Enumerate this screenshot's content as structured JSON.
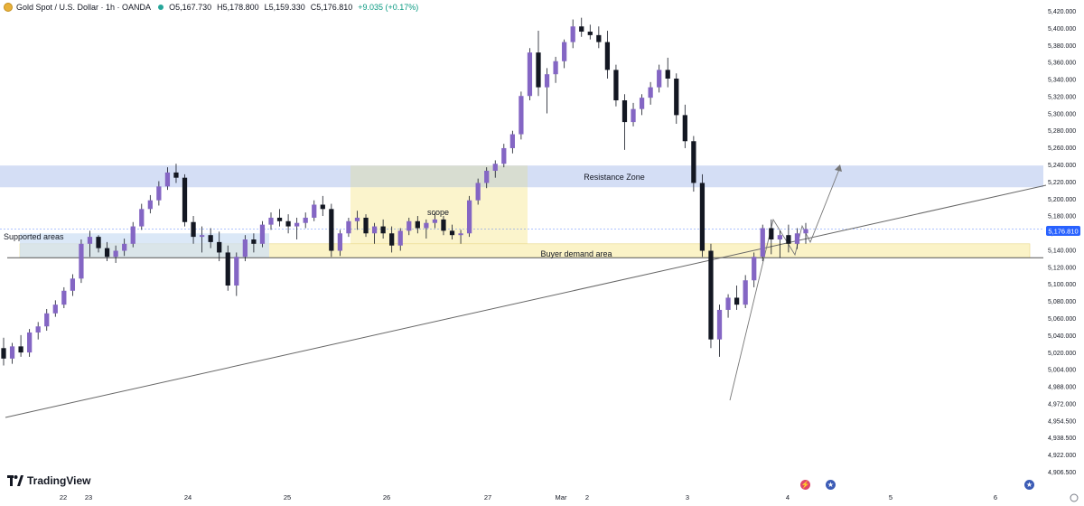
{
  "header": {
    "symbol": "Gold Spot / U.S. Dollar · 1h · OANDA",
    "open": "O5,167.730",
    "high": "H5,178.800",
    "low": "L5,159.330",
    "close": "C5,176.810",
    "change": "+9.035 (+0.17%)"
  },
  "brand": "TradingView",
  "icons": {
    "symbol": "gold-coin-icon",
    "brand": "tradingview-logo-icon",
    "event1": "lightning-event-icon",
    "event2": "us-flag-icon",
    "event3": "us-flag-icon"
  },
  "colors": {
    "bull_body": "#8466c4",
    "bear_body": "#131722",
    "wick": "#131722",
    "resistance_zone": "#c9d6f2",
    "demand_zone": "#fbf3c7",
    "support_zone": "#cfe0f4",
    "current_price_tag": "#2962ff"
  },
  "chart_data": {
    "type": "candlestick",
    "title": "Gold Spot / U.S. Dollar · 1h · OANDA",
    "ylim": [
      4900,
      5430
    ],
    "y_ticks": [
      "5,420.000",
      "5,400.000",
      "5,380.000",
      "5,360.000",
      "5,340.000",
      "5,320.000",
      "5,300.000",
      "5,280.000",
      "5,260.000",
      "5,240.000",
      "5,220.000",
      "5,200.000",
      "5,180.000",
      "5,160.000",
      "5,140.000",
      "5,120.000",
      "5,100.000",
      "5,080.000",
      "5,060.000",
      "5,040.000",
      "5,020.000",
      "5,004.000",
      "4,988.000",
      "4,972.000",
      "4,954.500",
      "4,938.500",
      "4,922.000",
      "4,906.500"
    ],
    "x_ticks": [
      "22",
      "23",
      "24",
      "25",
      "26",
      "27",
      "Mar",
      "2",
      "3",
      "4",
      "5",
      "6"
    ],
    "current_price": "5,176.810",
    "annotations": {
      "resistance": "Resistance Zone",
      "demand": "Buyer demand area",
      "support": "Supported areas",
      "scope": "scope"
    },
    "zones": [
      {
        "name": "Resistance Zone",
        "y_low": 5225,
        "y_high": 5250
      },
      {
        "name": "Buyer demand area",
        "y_low": 5144,
        "y_high": 5160
      },
      {
        "name": "Supported areas",
        "y_low": 5144,
        "y_high": 5170
      },
      {
        "name": "scope",
        "y_low": 5144,
        "y_high": 5250
      }
    ],
    "horizontal_line": 5144,
    "trendline": [
      [
        21.9,
        4977
      ],
      [
        6.5,
        5224
      ]
    ],
    "candles": [
      [
        5040,
        5052,
        5020,
        5028
      ],
      [
        5028,
        5046,
        5022,
        5042
      ],
      [
        5042,
        5055,
        5030,
        5035
      ],
      [
        5035,
        5062,
        5030,
        5058
      ],
      [
        5058,
        5070,
        5050,
        5065
      ],
      [
        5065,
        5085,
        5060,
        5080
      ],
      [
        5080,
        5095,
        5076,
        5090
      ],
      [
        5090,
        5110,
        5086,
        5106
      ],
      [
        5106,
        5125,
        5100,
        5120
      ],
      [
        5120,
        5165,
        5115,
        5160
      ],
      [
        5160,
        5175,
        5145,
        5168
      ],
      [
        5168,
        5170,
        5150,
        5155
      ],
      [
        5155,
        5162,
        5140,
        5145
      ],
      [
        5145,
        5158,
        5138,
        5152
      ],
      [
        5152,
        5166,
        5146,
        5160
      ],
      [
        5160,
        5185,
        5156,
        5180
      ],
      [
        5180,
        5206,
        5176,
        5200
      ],
      [
        5200,
        5216,
        5195,
        5210
      ],
      [
        5210,
        5232,
        5204,
        5226
      ],
      [
        5226,
        5248,
        5222,
        5242
      ],
      [
        5242,
        5252,
        5230,
        5236
      ],
      [
        5236,
        5240,
        5180,
        5185
      ],
      [
        5185,
        5192,
        5160,
        5168
      ],
      [
        5168,
        5180,
        5150,
        5170
      ],
      [
        5170,
        5178,
        5155,
        5162
      ],
      [
        5162,
        5174,
        5140,
        5150
      ],
      [
        5150,
        5158,
        5106,
        5112
      ],
      [
        5112,
        5150,
        5100,
        5145
      ],
      [
        5145,
        5170,
        5140,
        5165
      ],
      [
        5165,
        5172,
        5150,
        5160
      ],
      [
        5160,
        5186,
        5156,
        5182
      ],
      [
        5182,
        5196,
        5176,
        5190
      ],
      [
        5190,
        5200,
        5180,
        5186
      ],
      [
        5186,
        5194,
        5172,
        5180
      ],
      [
        5180,
        5190,
        5165,
        5184
      ],
      [
        5184,
        5196,
        5178,
        5190
      ],
      [
        5190,
        5210,
        5186,
        5205
      ],
      [
        5205,
        5215,
        5192,
        5200
      ],
      [
        5200,
        5206,
        5145,
        5152
      ],
      [
        5152,
        5176,
        5146,
        5172
      ],
      [
        5172,
        5190,
        5168,
        5186
      ],
      [
        5186,
        5198,
        5176,
        5190
      ],
      [
        5190,
        5194,
        5168,
        5172
      ],
      [
        5172,
        5184,
        5160,
        5180
      ],
      [
        5180,
        5188,
        5166,
        5172
      ],
      [
        5172,
        5180,
        5150,
        5158
      ],
      [
        5158,
        5178,
        5152,
        5175
      ],
      [
        5175,
        5190,
        5170,
        5186
      ],
      [
        5186,
        5192,
        5172,
        5178
      ],
      [
        5178,
        5188,
        5166,
        5184
      ],
      [
        5184,
        5196,
        5178,
        5188
      ],
      [
        5188,
        5192,
        5170,
        5175
      ],
      [
        5175,
        5182,
        5165,
        5170
      ],
      [
        5170,
        5176,
        5160,
        5172
      ],
      [
        5172,
        5215,
        5168,
        5210
      ],
      [
        5210,
        5235,
        5205,
        5230
      ],
      [
        5230,
        5248,
        5224,
        5244
      ],
      [
        5244,
        5256,
        5236,
        5252
      ],
      [
        5252,
        5275,
        5248,
        5270
      ],
      [
        5270,
        5290,
        5264,
        5286
      ],
      [
        5286,
        5335,
        5280,
        5330
      ],
      [
        5330,
        5385,
        5325,
        5380
      ],
      [
        5380,
        5405,
        5330,
        5340
      ],
      [
        5340,
        5362,
        5310,
        5355
      ],
      [
        5355,
        5375,
        5345,
        5370
      ],
      [
        5370,
        5395,
        5362,
        5392
      ],
      [
        5392,
        5418,
        5385,
        5410
      ],
      [
        5410,
        5420,
        5398,
        5404
      ],
      [
        5404,
        5412,
        5395,
        5400
      ],
      [
        5400,
        5410,
        5385,
        5392
      ],
      [
        5392,
        5405,
        5350,
        5360
      ],
      [
        5360,
        5366,
        5318,
        5325
      ],
      [
        5325,
        5332,
        5268,
        5300
      ],
      [
        5300,
        5322,
        5295,
        5315
      ],
      [
        5315,
        5332,
        5308,
        5328
      ],
      [
        5328,
        5346,
        5320,
        5340
      ],
      [
        5340,
        5366,
        5334,
        5360
      ],
      [
        5360,
        5374,
        5340,
        5350
      ],
      [
        5350,
        5356,
        5298,
        5308
      ],
      [
        5308,
        5320,
        5270,
        5278
      ],
      [
        5278,
        5284,
        5220,
        5230
      ],
      [
        5230,
        5240,
        5145,
        5152
      ],
      [
        5152,
        5160,
        5040,
        5050
      ],
      [
        5050,
        5090,
        5030,
        5084
      ],
      [
        5084,
        5102,
        5075,
        5098
      ],
      [
        5098,
        5112,
        5084,
        5090
      ],
      [
        5090,
        5124,
        5086,
        5118
      ],
      [
        5118,
        5150,
        5110,
        5145
      ],
      [
        5145,
        5182,
        5140,
        5178
      ],
      [
        5178,
        5188,
        5148,
        5165
      ],
      [
        5165,
        5175,
        5144,
        5170
      ],
      [
        5170,
        5182,
        5150,
        5160
      ],
      [
        5160,
        5178,
        5154,
        5172
      ],
      [
        5172,
        5184,
        5160,
        5177
      ]
    ]
  }
}
